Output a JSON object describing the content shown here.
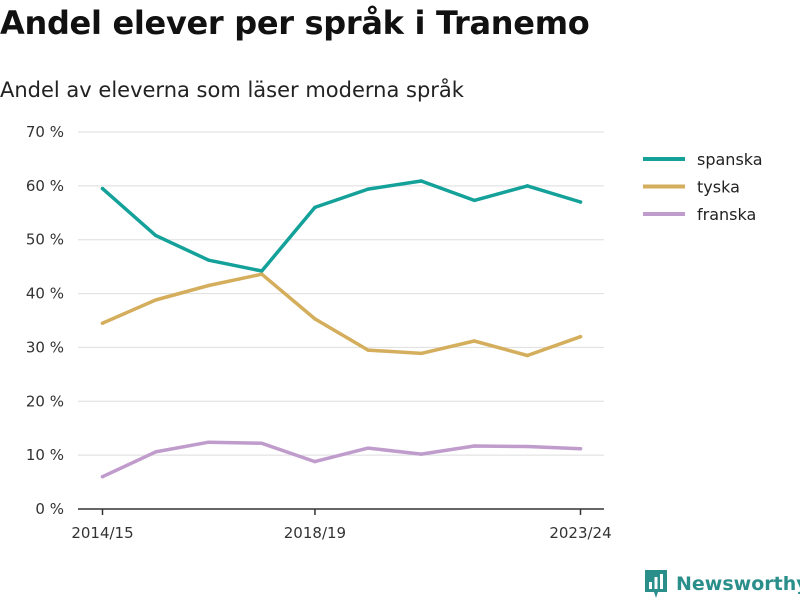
{
  "title": "Andel elever per språk i Tranemo",
  "subtitle": "Andel av eleverna som läser moderna språk",
  "brand": {
    "name": "Newsworthy",
    "icon": "bar-chart-logo-icon",
    "color": "#2a8f8a"
  },
  "chart_data": {
    "type": "line",
    "title": "Andel elever per språk i Tranemo",
    "subtitle": "Andel av eleverna som läser moderna språk",
    "x": [
      "2014/15",
      "2015/16",
      "2016/17",
      "2017/18",
      "2018/19",
      "2019/20",
      "2020/21",
      "2021/22",
      "2022/23",
      "2023/24"
    ],
    "x_tick_labels": [
      "2014/15",
      "2018/19",
      "2023/24"
    ],
    "ylim": [
      0,
      70
    ],
    "y_ticks": [
      0,
      10,
      20,
      30,
      40,
      50,
      60,
      70
    ],
    "y_tick_labels": [
      "0 %",
      "10 %",
      "20 %",
      "30 %",
      "40 %",
      "50 %",
      "60 %",
      "70 %"
    ],
    "grid": true,
    "legend_position": "top-right",
    "series": [
      {
        "name": "spanska",
        "color": "#13a19a",
        "values": [
          59.5,
          50.8,
          46.2,
          44.2,
          56.0,
          59.4,
          60.9,
          57.3,
          60.0,
          57.0
        ]
      },
      {
        "name": "tyska",
        "color": "#d4ae5c",
        "values": [
          34.5,
          38.8,
          41.5,
          43.6,
          35.3,
          29.5,
          28.9,
          31.2,
          28.5,
          32.0
        ]
      },
      {
        "name": "franska",
        "color": "#c09ccc",
        "values": [
          6.0,
          10.6,
          12.4,
          12.2,
          8.8,
          11.3,
          10.2,
          11.7,
          11.6,
          11.2
        ]
      }
    ]
  }
}
